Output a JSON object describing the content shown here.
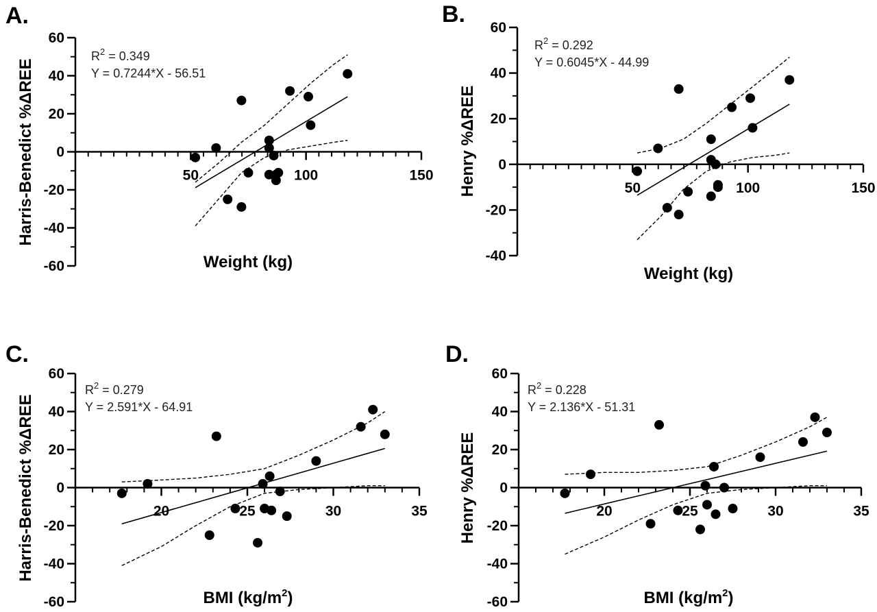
{
  "chart_data": [
    {
      "panel": "A.",
      "type": "scatter",
      "xlabel": "Weight (kg)",
      "ylabel": "Harris-Benedict %ΔREE",
      "xlim": [
        0,
        150
      ],
      "ylim": [
        -60,
        60
      ],
      "x_ticks": [
        50,
        100,
        150
      ],
      "y_ticks": [
        -60,
        -40,
        -20,
        0,
        20,
        40,
        60
      ],
      "r2_prefix": "R",
      "r2_sup": "2",
      "r2_value": " = 0.349",
      "equation": "Y = 0.7244*X - 56.51",
      "fit": {
        "slope": 0.7244,
        "intercept": -56.51,
        "x_range": [
          52,
          118
        ]
      },
      "ci": {
        "upper": [
          [
            52,
            -16
          ],
          [
            62,
            -6
          ],
          [
            72,
            5
          ],
          [
            82,
            14
          ],
          [
            92,
            25
          ],
          [
            102,
            36
          ],
          [
            112,
            46
          ],
          [
            118,
            51
          ]
        ],
        "lower": [
          [
            52,
            -39
          ],
          [
            62,
            -25
          ],
          [
            72,
            -11
          ],
          [
            82,
            -3
          ],
          [
            92,
            1
          ],
          [
            102,
            3
          ],
          [
            112,
            5
          ],
          [
            118,
            6
          ]
        ]
      },
      "points": [
        [
          52,
          -3
        ],
        [
          61,
          2
        ],
        [
          66,
          -25
        ],
        [
          72,
          27
        ],
        [
          72,
          -29
        ],
        [
          75,
          -11
        ],
        [
          84,
          6
        ],
        [
          84,
          2
        ],
        [
          84,
          -12
        ],
        [
          86,
          -2
        ],
        [
          87,
          -12
        ],
        [
          87,
          -15
        ],
        [
          88,
          -11
        ],
        [
          93,
          32
        ],
        [
          101,
          29
        ],
        [
          102,
          14
        ],
        [
          118,
          41
        ]
      ]
    },
    {
      "panel": "B.",
      "type": "scatter",
      "xlabel": "Weight (kg)",
      "ylabel": "Henry %ΔREE",
      "xlim": [
        0,
        150
      ],
      "ylim": [
        -40,
        60
      ],
      "x_ticks": [
        50,
        100,
        150
      ],
      "y_ticks": [
        -40,
        -20,
        0,
        20,
        40,
        60
      ],
      "r2_prefix": "R",
      "r2_sup": "2",
      "r2_value": " = 0.292",
      "equation": "Y = 0.6045*X - 44.99",
      "fit": {
        "slope": 0.6045,
        "intercept": -44.99,
        "x_range": [
          52,
          118
        ]
      },
      "ci": {
        "upper": [
          [
            52,
            5
          ],
          [
            62,
            7
          ],
          [
            72,
            11
          ],
          [
            82,
            18
          ],
          [
            92,
            26
          ],
          [
            102,
            34
          ],
          [
            112,
            42
          ],
          [
            118,
            47
          ]
        ],
        "lower": [
          [
            52,
            -33
          ],
          [
            62,
            -23
          ],
          [
            72,
            -11
          ],
          [
            82,
            -3
          ],
          [
            92,
            1
          ],
          [
            102,
            3
          ],
          [
            112,
            4
          ],
          [
            118,
            5
          ]
        ]
      },
      "points": [
        [
          52,
          -3
        ],
        [
          61,
          7
        ],
        [
          65,
          -19
        ],
        [
          70,
          33
        ],
        [
          70,
          -22
        ],
        [
          74,
          -12
        ],
        [
          84,
          11
        ],
        [
          84,
          2
        ],
        [
          84,
          -14
        ],
        [
          86,
          0
        ],
        [
          87,
          -9
        ],
        [
          87,
          -10
        ],
        [
          93,
          25
        ],
        [
          101,
          29
        ],
        [
          102,
          16
        ],
        [
          118,
          37
        ]
      ]
    },
    {
      "panel": "C.",
      "type": "scatter",
      "xlabel": "BMI (kg/m",
      "xlabel_sup": "2",
      "xlabel_suffix": ")",
      "ylabel": "Harris-Benedict %ΔREE",
      "xlim": [
        15,
        35
      ],
      "ylim": [
        -60,
        60
      ],
      "x_ticks": [
        20,
        25,
        30,
        35
      ],
      "y_ticks": [
        -60,
        -40,
        -20,
        0,
        20,
        40,
        60
      ],
      "r2_prefix": "R",
      "r2_sup": "2",
      "r2_value": " = 0.279",
      "equation": "Y = 2.591*X - 64.91",
      "fit": {
        "slope": 2.591,
        "intercept": -64.91,
        "x_range": [
          17.7,
          33
        ]
      },
      "ci": {
        "upper": [
          [
            17.7,
            3
          ],
          [
            20,
            4
          ],
          [
            22,
            5
          ],
          [
            24,
            7
          ],
          [
            26,
            10
          ],
          [
            28,
            17
          ],
          [
            30,
            25
          ],
          [
            32,
            34
          ],
          [
            33,
            40
          ]
        ],
        "lower": [
          [
            17.7,
            -41
          ],
          [
            20,
            -31
          ],
          [
            22,
            -20
          ],
          [
            24,
            -10
          ],
          [
            26,
            -3
          ],
          [
            28,
            -1
          ],
          [
            30,
            0
          ],
          [
            32,
            1
          ],
          [
            33,
            1
          ]
        ]
      },
      "points": [
        [
          17.7,
          -3
        ],
        [
          19.2,
          2
        ],
        [
          22.8,
          -25
        ],
        [
          23.2,
          27
        ],
        [
          24.3,
          -11
        ],
        [
          25.6,
          -29
        ],
        [
          25.9,
          2
        ],
        [
          26,
          -11
        ],
        [
          26.3,
          6
        ],
        [
          26.4,
          -12
        ],
        [
          26.9,
          -2
        ],
        [
          27.3,
          -15
        ],
        [
          29,
          14
        ],
        [
          31.6,
          32
        ],
        [
          32.3,
          41
        ],
        [
          33,
          28
        ]
      ]
    },
    {
      "panel": "D.",
      "type": "scatter",
      "xlabel": "BMI (kg/m",
      "xlabel_sup": "2",
      "xlabel_suffix": ")",
      "ylabel": "Henry %ΔREE",
      "xlim": [
        15,
        35
      ],
      "ylim": [
        -60,
        60
      ],
      "x_ticks": [
        20,
        25,
        30,
        35
      ],
      "y_ticks": [
        -60,
        -40,
        -20,
        0,
        20,
        40,
        60
      ],
      "r2_prefix": "R",
      "r2_sup": "2",
      "r2_value": " = 0.228",
      "equation": "Y = 2.136*X - 51.31",
      "fit": {
        "slope": 2.136,
        "intercept": -51.31,
        "x_range": [
          17.7,
          33
        ]
      },
      "ci": {
        "upper": [
          [
            17.7,
            7
          ],
          [
            20,
            8
          ],
          [
            22,
            8
          ],
          [
            24,
            9
          ],
          [
            26,
            11
          ],
          [
            28,
            17
          ],
          [
            30,
            24
          ],
          [
            32,
            32
          ],
          [
            33,
            37
          ]
        ],
        "lower": [
          [
            17.7,
            -35
          ],
          [
            20,
            -26
          ],
          [
            22,
            -17
          ],
          [
            24,
            -9
          ],
          [
            26,
            -3
          ],
          [
            28,
            -1
          ],
          [
            30,
            0
          ],
          [
            32,
            1
          ],
          [
            33,
            1
          ]
        ]
      },
      "points": [
        [
          17.7,
          -3
        ],
        [
          19.2,
          7
        ],
        [
          22.7,
          -19
        ],
        [
          23.2,
          33
        ],
        [
          24.3,
          -12
        ],
        [
          25.6,
          -22
        ],
        [
          25.9,
          1
        ],
        [
          26,
          -9
        ],
        [
          26.4,
          11
        ],
        [
          26.5,
          -14
        ],
        [
          27,
          0
        ],
        [
          27.5,
          -11
        ],
        [
          29.1,
          16
        ],
        [
          31.6,
          24
        ],
        [
          32.3,
          37
        ],
        [
          33,
          29
        ]
      ]
    }
  ]
}
